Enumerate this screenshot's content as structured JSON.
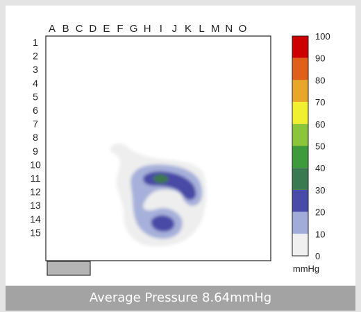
{
  "chart_data": {
    "type": "heatmap",
    "columns": [
      "A",
      "B",
      "C",
      "D",
      "E",
      "F",
      "G",
      "H",
      "I",
      "J",
      "K",
      "L",
      "M",
      "N",
      "O"
    ],
    "rows": [
      "1",
      "2",
      "3",
      "4",
      "5",
      "6",
      "7",
      "8",
      "9",
      "10",
      "11",
      "12",
      "13",
      "14",
      "15"
    ],
    "legend": {
      "ticks": [
        100,
        90,
        80,
        70,
        60,
        50,
        40,
        30,
        20,
        10,
        0
      ],
      "unit": "mmHg",
      "bands": [
        {
          "from": 90,
          "to": 100,
          "color": "#cc0000"
        },
        {
          "from": 80,
          "to": 90,
          "color": "#e0601a"
        },
        {
          "from": 70,
          "to": 80,
          "color": "#e8a62a"
        },
        {
          "from": 60,
          "to": 70,
          "color": "#f0f030"
        },
        {
          "from": 50,
          "to": 60,
          "color": "#8cc43a"
        },
        {
          "from": 40,
          "to": 50,
          "color": "#3e9a3a"
        },
        {
          "from": 30,
          "to": 40,
          "color": "#3a7a50"
        },
        {
          "from": 20,
          "to": 30,
          "color": "#4a4aa8"
        },
        {
          "from": 10,
          "to": 20,
          "color": "#a2acd8"
        },
        {
          "from": 0,
          "to": 10,
          "color": "#f0f0f0"
        }
      ]
    },
    "average_pressure": {
      "value": 8.64,
      "unit": "mmHg"
    }
  },
  "caption": "Average Pressure 8.64mmHg"
}
